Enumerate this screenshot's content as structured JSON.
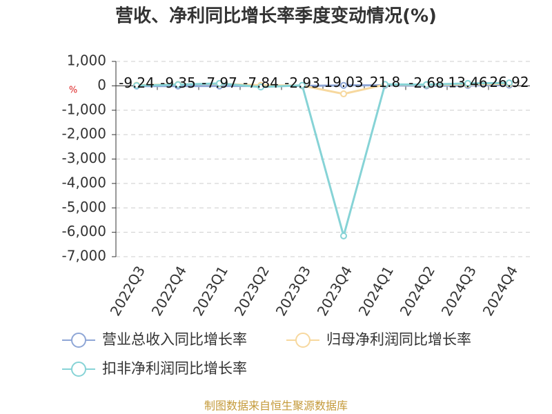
{
  "chart_data": {
    "type": "line",
    "title": "营收、净利同比增长率季度变动情况(%)",
    "y_unit": "%",
    "source": "制图数据来自恒生聚源数据库",
    "categories": [
      "2022Q3",
      "2022Q4",
      "2023Q1",
      "2023Q2",
      "2023Q3",
      "2023Q4",
      "2024Q1",
      "2024Q2",
      "2024Q3",
      "2024Q4"
    ],
    "series": [
      {
        "name": "营业总收入同比增长率",
        "color": "#8ea6d6",
        "values": [
          -9.24,
          -9.35,
          -7.97,
          -7.84,
          -2.93,
          19.03,
          21.8,
          -2.68,
          13.46,
          26.92
        ]
      },
      {
        "name": "归母净利润同比增长率",
        "color": "#f7d89e",
        "values": [
          30,
          60,
          80,
          20,
          10,
          -330,
          50,
          40,
          60,
          80
        ]
      },
      {
        "name": "扣非净利润同比增长率",
        "color": "#86d3d6",
        "values": [
          10,
          50,
          100,
          -50,
          20,
          -6150,
          60,
          50,
          100,
          120
        ]
      }
    ],
    "ylim": [
      -7000,
      1000
    ],
    "yticks": [
      {
        "value": 1000,
        "label": "1,000"
      },
      0,
      {
        "value": -1000,
        "label": "-1,000"
      },
      {
        "value": -2000,
        "label": "-2,000"
      },
      {
        "value": -3000,
        "label": "-3,000"
      },
      {
        "value": -4000,
        "label": "-4,000"
      },
      {
        "value": -5000,
        "label": "-5,000"
      },
      {
        "value": -6000,
        "label": "-6,000"
      },
      {
        "value": -7000,
        "label": "-7,000"
      }
    ],
    "grid": true
  }
}
